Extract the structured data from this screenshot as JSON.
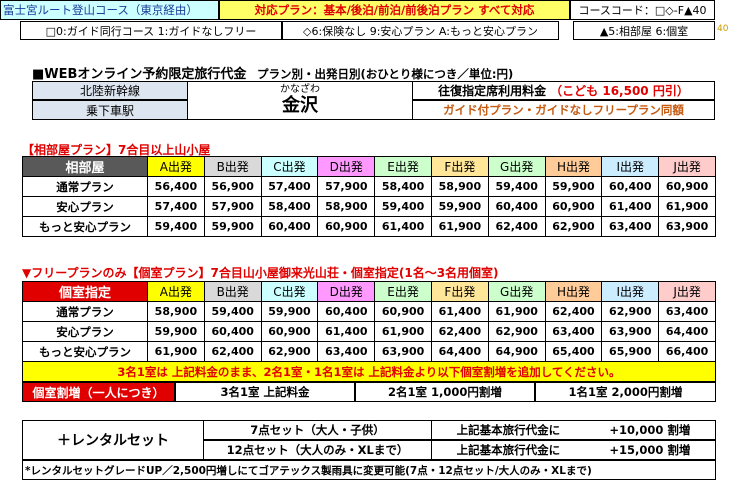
{
  "header": {
    "route": "富士宮ルート登山コース（東京経由）",
    "plans": "対応プラン：基本/後泊/前泊/前後泊プラン すべて対応",
    "course_code": "コースコード：□◇-F▲40",
    "code_small": "40"
  },
  "legend": {
    "guide": "□0:ガイド同行コース 1:ガイドなしフリー",
    "insurance": "◇6:保険なし 9:安心プラン A:もっと安心プラン",
    "room": "▲5:相部屋 6:個室"
  },
  "title": {
    "main": "■WEBオンライン予約限定旅行代金",
    "sub": "プラン別・出発日別(おひとり様につき／単位:円)"
  },
  "station": {
    "line": "北陸新幹線",
    "boarding": "乗下車駅",
    "reading": "かなざわ",
    "name": "金沢",
    "fare_label": "往復指定席利用料金",
    "child_fare": "（こども 16,500 円引）",
    "same_price": "ガイド付プラン・ガイドなしフリープラン同額"
  },
  "shared_section": {
    "title": "【相部屋プラン】7合目以上山小屋",
    "corner": "相部屋",
    "columns": [
      {
        "label": "A出発",
        "color": "#ffff00"
      },
      {
        "label": "B出発",
        "color": "#d9d9d9"
      },
      {
        "label": "C出発",
        "color": "#ccffff"
      },
      {
        "label": "D出発",
        "color": "#ff99ff"
      },
      {
        "label": "E出発",
        "color": "#ccffcc"
      },
      {
        "label": "F出発",
        "color": "#ffe699"
      },
      {
        "label": "G出発",
        "color": "#ccffcc"
      },
      {
        "label": "H出発",
        "color": "#ffcc99"
      },
      {
        "label": "I出発",
        "color": "#ccecff"
      },
      {
        "label": "J出発",
        "color": "#ffcccc"
      }
    ],
    "rows": [
      {
        "label": "通常プラン",
        "prices": [
          "56,400",
          "56,900",
          "57,400",
          "57,900",
          "58,400",
          "58,900",
          "59,400",
          "59,900",
          "60,400",
          "60,900"
        ]
      },
      {
        "label": "安心プラン",
        "prices": [
          "57,400",
          "57,900",
          "58,400",
          "58,900",
          "59,400",
          "59,900",
          "60,400",
          "60,900",
          "61,400",
          "61,900"
        ]
      },
      {
        "label": "もっと安心プラン",
        "prices": [
          "59,400",
          "59,900",
          "60,400",
          "60,900",
          "61,400",
          "61,900",
          "62,400",
          "62,900",
          "63,400",
          "63,900"
        ]
      }
    ]
  },
  "private_section": {
    "title": "▼フリープランのみ【個室プラン】7合目山小屋御来光山荘・個室指定(1名〜3名用個室)",
    "corner": "個室指定",
    "rows": [
      {
        "label": "通常プラン",
        "prices": [
          "58,900",
          "59,400",
          "59,900",
          "60,400",
          "60,900",
          "61,400",
          "61,900",
          "62,400",
          "62,900",
          "63,400"
        ]
      },
      {
        "label": "安心プラン",
        "prices": [
          "59,900",
          "60,400",
          "60,900",
          "61,400",
          "61,900",
          "62,400",
          "62,900",
          "63,400",
          "63,900",
          "64,400"
        ]
      },
      {
        "label": "もっと安心プラン",
        "prices": [
          "61,900",
          "62,400",
          "62,900",
          "63,400",
          "63,900",
          "64,400",
          "64,900",
          "65,400",
          "65,900",
          "66,400"
        ]
      }
    ],
    "note": "3名1室は 上記料金のまま、2名1室・1名1室は 上記料金より以下個室割増を追加してください。",
    "surcharge_label": "個室割増（一人につき）",
    "surcharges": [
      "3名1室 上記料金",
      "2名1室 1,000円割増",
      "1名1室 2,000円割増"
    ]
  },
  "rental": {
    "label": "＋レンタルセット",
    "items": [
      {
        "name": "7点セット（大人・子供）",
        "desc": "上記基本旅行代金に",
        "price": "+10,000 割増"
      },
      {
        "name": "12点セット（大人のみ・XLまで）",
        "desc": "上記基本旅行代金に",
        "price": "+15,000 割増"
      }
    ],
    "note": "*レンタルセットグレードUP／2,500円増しにてゴアテックス製雨具に変更可能(7点・12点セット/大人のみ・XLまで)"
  }
}
